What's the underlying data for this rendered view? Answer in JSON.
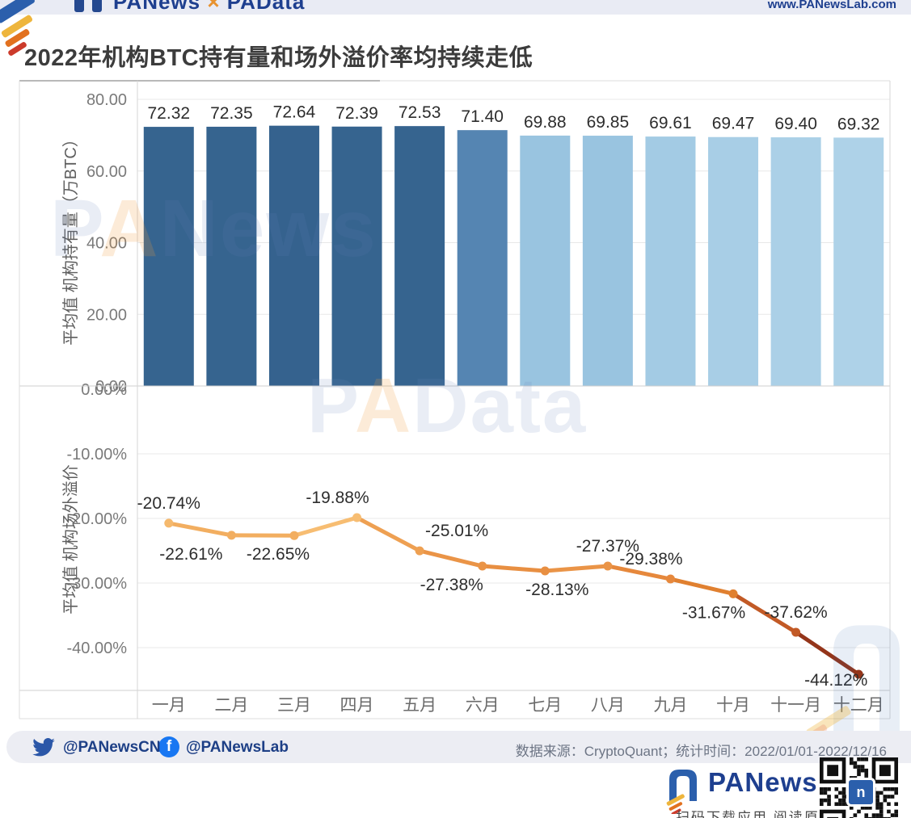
{
  "header": {
    "logo": "PANews",
    "logo_sep": "×",
    "logo2": "PAData",
    "url": "www.PANewsLab.com"
  },
  "title": "2022年机构BTC持有量和场外溢价率均持续走低",
  "watermarks": {
    "top_p": "P",
    "top_a": "A",
    "top_rest": "News",
    "mid_p": "P",
    "mid_a": "A",
    "mid_rest": "Data"
  },
  "chart_data": [
    {
      "type": "bar",
      "title": "",
      "categories": [
        "一月",
        "二月",
        "三月",
        "四月",
        "五月",
        "六月",
        "七月",
        "八月",
        "九月",
        "十月",
        "十一月",
        "十二月"
      ],
      "values": [
        72.32,
        72.35,
        72.64,
        72.39,
        72.53,
        71.4,
        69.88,
        69.85,
        69.61,
        69.47,
        69.4,
        69.32
      ],
      "data_labels": [
        "72.32",
        "72.35",
        "72.64",
        "72.39",
        "72.53",
        "71.40",
        "69.88",
        "69.85",
        "69.61",
        "69.47",
        "69.40",
        "69.32"
      ],
      "ylabel": "平均值 机构持有量（万BTC）",
      "yticks": [
        0,
        20,
        40,
        60,
        80
      ],
      "ytick_labels": [
        "0.00",
        "20.00",
        "40.00",
        "60.00",
        "80.00"
      ],
      "ylim": [
        0,
        85
      ],
      "grid": true,
      "legend": "none",
      "bar_colors": [
        "#36648f",
        "#36648f",
        "#35628e",
        "#36648f",
        "#36648f",
        "#5585b2",
        "#99c4e0",
        "#99c4e0",
        "#a3cbe4",
        "#a8cee6",
        "#abd0e7",
        "#aed2e8"
      ]
    },
    {
      "type": "line",
      "title": "",
      "categories": [
        "一月",
        "二月",
        "三月",
        "四月",
        "五月",
        "六月",
        "七月",
        "八月",
        "九月",
        "十月",
        "十一月",
        "十二月"
      ],
      "values": [
        -20.74,
        -22.61,
        -22.65,
        -19.88,
        -25.01,
        -27.38,
        -28.13,
        -27.37,
        -29.38,
        -31.67,
        -37.62,
        -44.12
      ],
      "data_labels": [
        "-20.74%",
        "-22.61%",
        "-22.65%",
        "-19.88%",
        "-25.01%",
        "-27.38%",
        "-28.13%",
        "-27.37%",
        "-29.38%",
        "-31.67%",
        "-37.62%",
        "-44.12%"
      ],
      "ylabel": "平均值 机构场外溢价",
      "yticks": [
        0,
        -10,
        -20,
        -30,
        -40
      ],
      "ytick_labels": [
        "0.00%",
        "-10.00%",
        "-20.00%",
        "-30.00%",
        "-40.00%"
      ],
      "ylim": [
        -46.6,
        0.5
      ],
      "grid": true,
      "legend": "none",
      "point_colors": [
        "#f5b96d",
        "#f2ae60",
        "#f2ae60",
        "#f7bd72",
        "#eea052",
        "#ea9447",
        "#e88f42",
        "#ea9447",
        "#e6883c",
        "#e08030",
        "#c25a26",
        "#94351a"
      ],
      "label_dx": [
        0,
        -50,
        -20,
        -24,
        46,
        -38,
        15,
        0,
        -24,
        -24,
        0,
        -28
      ],
      "label_dy": [
        -18,
        30,
        30,
        -18,
        -18,
        30,
        30,
        -18,
        -18,
        30,
        -18,
        14
      ]
    }
  ],
  "footer": {
    "twitter_handle": "@PANewsCN",
    "facebook_handle": "@PANewsLab",
    "facebook_f": "f",
    "source": "数据来源：CryptoQuant；统计时间：2022/01/01-2022/12/16"
  },
  "bottom": {
    "brand": "PANews",
    "scan_text": "扫码下载应用 阅读原文",
    "qr_center_glyph": "n"
  },
  "colors": {
    "accent_navy": "#1e3f8f",
    "bar_dark": "#36648f",
    "bar_medium": "#5585b2",
    "bar_light": "#aed2e8",
    "line_start": "#f5b96d",
    "line_end": "#94351a",
    "grid": "#e8e8e8",
    "axis_border": "#d6d6d6",
    "tick_text": "#7a7a7a",
    "axis_title_text": "#5f5f5f",
    "value_label_text": "#2d2d2d",
    "facebook_blue": "#1877f2",
    "twitter_navy": "#2b57a8"
  }
}
